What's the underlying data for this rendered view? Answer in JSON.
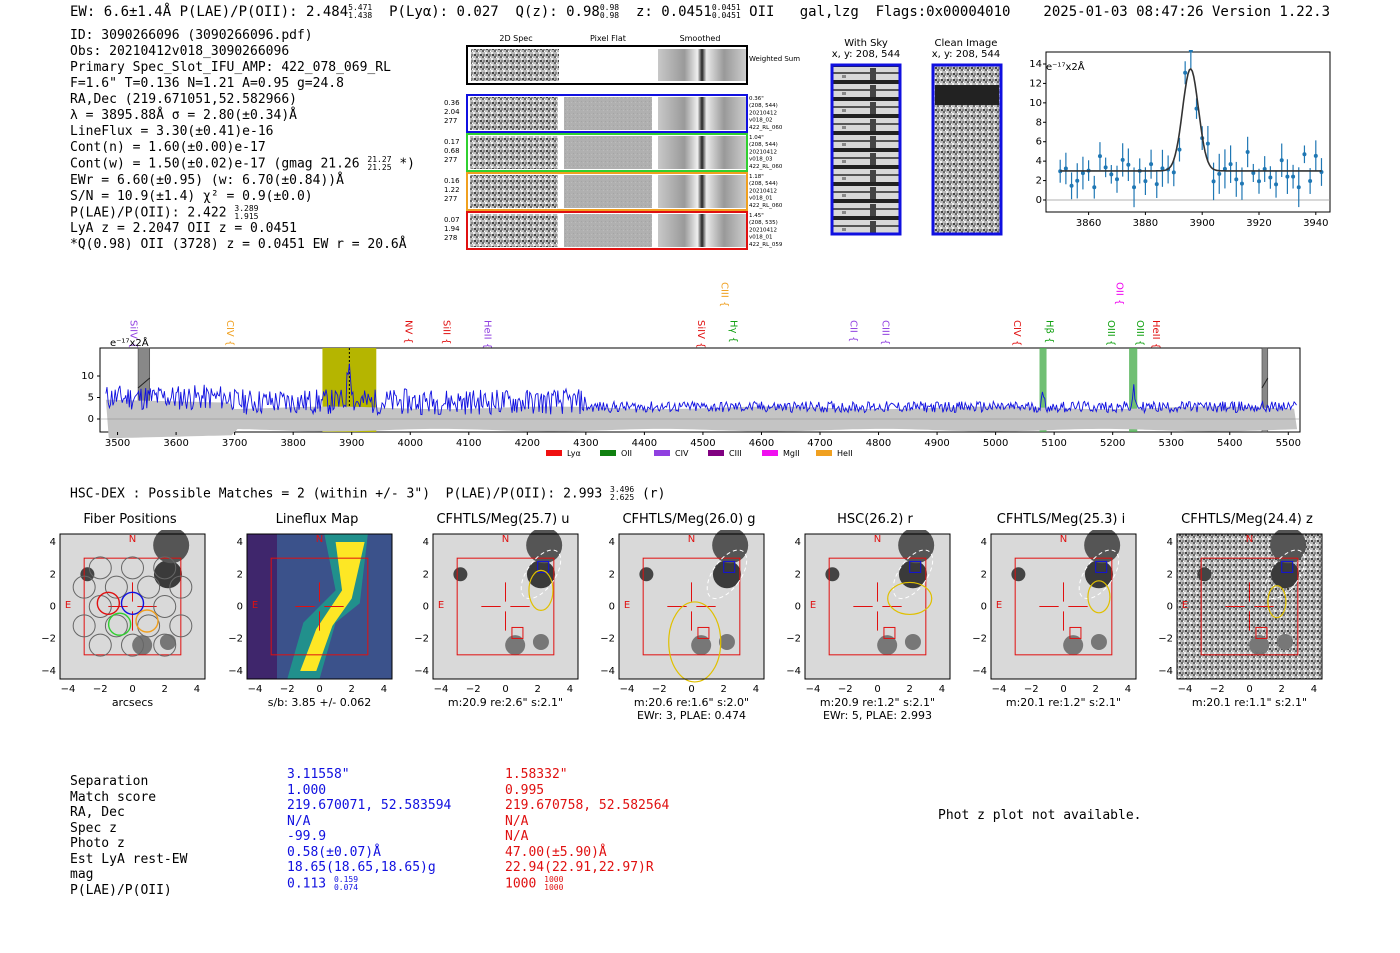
{
  "header": {
    "summary_line": "EW: 6.6±1.4Å  P(LAE)/P(OII): 2.484",
    "summary_ew_hi": "5.471",
    "summary_ew_lo": "1.438",
    "plya": "P(Lyα): 0.027",
    "qz": "Q(z): 0.98",
    "qz_hi": "0.98",
    "qz_lo": "0.98",
    "z": "z: 0.0451",
    "z_hi": "0.0451",
    "z_lo": "0.0451",
    "z_tail": "OII   gal,lzg  Flags:0x00004010",
    "timestamp": "2025-01-03 08:47:26  Version 1.22.3"
  },
  "info": {
    "lines": [
      "ID: 3090266096 (3090266096.pdf)",
      "Obs: 20210412v018_3090266096",
      "Primary Spec_Slot_IFU_AMP: 422_078_069_RL",
      "F=1.6\"  T=0.136  N=1.21  A=0.95  g=24.8",
      "RA,Dec (219.671051,52.582966)",
      "λ = 3895.88Å  σ = 2.80(±0.34)Å",
      "LineFlux = 3.30(±0.41)e-16",
      "Cont(n) = 1.60(±0.00)e-17",
      "Cont(w) = 1.50(±0.02)e-17 (gmag 21.26",
      "EWr = 6.60(±0.95) (w: 6.70(±0.84))Å",
      "S/N = 10.9(±1.4)  χ² = 0.9(±0.0)",
      "P(LAE)/P(OII): 2.422",
      "LyA z = 2.2047  OII z = 0.0451",
      "*Q(0.98) OII (3728) z = 0.0451  EW r = 20.6Å"
    ],
    "gmag_hi": "21.27",
    "gmag_lo": "21.25",
    "gmag_tail": " *)",
    "plae_hi": "3.289",
    "plae_lo": "1.915"
  },
  "cutouts": {
    "col_titles": [
      "2D Spec",
      "Pixel Flat",
      "Smoothed"
    ],
    "weighted_label": "Weighted Sum",
    "rows": [
      {
        "left": [
          "0.36",
          "2.04",
          "277"
        ],
        "right": [
          "0.36\"",
          "(208, 544)",
          "20210412",
          "v018_02",
          "422_RL_060"
        ],
        "color": "#1010e0"
      },
      {
        "left": [
          "0.17",
          "0.68",
          "277"
        ],
        "right": [
          "1.04\"",
          "(208, 544)",
          "20210412",
          "v018_03",
          "422_RL_060"
        ],
        "color": "#30d030"
      },
      {
        "left": [
          "0.16",
          "1.22",
          "277"
        ],
        "right": [
          "1.18\"",
          "(208, 544)",
          "20210412",
          "v018_01",
          "422_RL_060"
        ],
        "color": "#f0a020"
      },
      {
        "left": [
          "0.07",
          "1.94",
          "278"
        ],
        "right": [
          "1.45\"",
          "(208, 535)",
          "20210412",
          "v018_01",
          "422_RL_059"
        ],
        "color": "#e01010"
      }
    ],
    "with_sky_title": "With Sky",
    "with_sky_sub": "x, y: 208, 544",
    "clean_title": "Clean Image",
    "clean_sub": "x, y: 208, 544"
  },
  "line_fit": {
    "ylabel": "e⁻¹⁷x2Å",
    "xticks": [
      "3860",
      "3880",
      "3900",
      "3920",
      "3940"
    ],
    "yticks": [
      "0",
      "2",
      "4",
      "6",
      "8",
      "10",
      "12",
      "14"
    ]
  },
  "full_spectrum": {
    "ylabel": "e⁻¹⁷x2Å",
    "xticks": [
      "3500",
      "3600",
      "3700",
      "3800",
      "3900",
      "4000",
      "4100",
      "4200",
      "4300",
      "4400",
      "4500",
      "4600",
      "4700",
      "4800",
      "4900",
      "5000",
      "5100",
      "5200",
      "5300",
      "5400",
      "5500"
    ],
    "yticks": [
      "0",
      "5",
      "10"
    ],
    "lines": [
      {
        "name": "SiIV",
        "wave": 3515,
        "color": "#9040e0",
        "row": 0
      },
      {
        "name": "CIV",
        "wave": 3680,
        "color": "#f0a020",
        "row": 0
      },
      {
        "name": "NV",
        "wave": 3985,
        "color": "#e01010",
        "row": 0
      },
      {
        "name": "SiII",
        "wave": 4050,
        "color": "#e01010",
        "row": 0
      },
      {
        "name": "HeII",
        "wave": 4120,
        "color": "#9040e0",
        "row": 0
      },
      {
        "name": "SiIV",
        "wave": 4485,
        "color": "#e01010",
        "row": 0
      },
      {
        "name": "CIII",
        "wave": 4525,
        "color": "#f0a020",
        "row": 1
      },
      {
        "name": "Hγ",
        "wave": 4540,
        "color": "#10a010",
        "row": 0
      },
      {
        "name": "CII",
        "wave": 4745,
        "color": "#9040e0",
        "row": 0
      },
      {
        "name": "CIII",
        "wave": 4800,
        "color": "#9040e0",
        "row": 0
      },
      {
        "name": "CIV",
        "wave": 5025,
        "color": "#e01010",
        "row": 0
      },
      {
        "name": "Hβ",
        "wave": 5080,
        "color": "#10a010",
        "row": 0
      },
      {
        "name": "OIII",
        "wave": 5185,
        "color": "#10a010",
        "row": 0
      },
      {
        "name": "OII",
        "wave": 5200,
        "color": "#f000f0",
        "row": 1
      },
      {
        "name": "OIII",
        "wave": 5235,
        "color": "#10a010",
        "row": 0
      },
      {
        "name": "HeII",
        "wave": 5262,
        "color": "#e01010",
        "row": 0
      }
    ],
    "legend": [
      {
        "label": "Lyα",
        "color": "#f01010"
      },
      {
        "label": "OII",
        "color": "#108010"
      },
      {
        "label": "CIV",
        "color": "#9040e0"
      },
      {
        "label": "CIII",
        "color": "#800080"
      },
      {
        "label": "MgII",
        "color": "#f010f0"
      },
      {
        "label": "HeII",
        "color": "#f0a020"
      }
    ]
  },
  "hsc": {
    "header": "HSC-DEX : Possible Matches = 2 (within +/- 3\")  P(LAE)/P(OII): 2.993",
    "hi": "3.496",
    "lo": "2.625",
    "tail": " (r)",
    "panels": [
      {
        "title": "Fiber Positions",
        "caption1": "arcsecs",
        "caption2": ""
      },
      {
        "title": "Lineflux Map",
        "caption1": "s/b: 3.85 +/- 0.062",
        "caption2": ""
      },
      {
        "title": "CFHTLS/Meg(25.7) u",
        "caption1": "m:20.9  re:2.6\"  s:2.1\"",
        "caption2": ""
      },
      {
        "title": "CFHTLS/Meg(26.0) g",
        "caption1": "m:20.6  re:1.6\"  s:2.0\"",
        "caption2": "EWr: 3, PLAE: 0.474"
      },
      {
        "title": "HSC(26.2) r",
        "caption1": "m:20.9  re:1.2\"  s:2.1\"",
        "caption2": "EWr: 5, PLAE: 2.993"
      },
      {
        "title": "CFHTLS/Meg(25.3) i",
        "caption1": "m:20.1  re:1.2\"  s:2.1\"",
        "caption2": ""
      },
      {
        "title": "CFHTLS/Meg(24.4) z",
        "caption1": "m:20.1  re:1.1\"  s:2.1\"",
        "caption2": ""
      }
    ],
    "ticks": [
      "4",
      "2",
      "0",
      "−2",
      "−4"
    ],
    "xticks": [
      "−4",
      "−2",
      "0",
      "2",
      "4"
    ],
    "n_label": "N",
    "e_label": "E"
  },
  "match_table": {
    "labels": [
      "Separation",
      "Match score",
      "RA, Dec",
      "Spec z",
      "Photo z",
      "Est LyA rest-EW",
      "mag",
      "P(LAE)/P(OII)"
    ],
    "blue": [
      "3.11558\"",
      "1.000",
      "219.670071, 52.583594",
      "N/A",
      "-99.9",
      "0.58(±0.07)Å",
      "18.65(18.65,18.65)g",
      "0.113"
    ],
    "blue_hi": "0.159",
    "blue_lo": "0.074",
    "red": [
      "1.58332\"",
      "0.995",
      "219.670758, 52.582564",
      "N/A",
      "N/A",
      "47.00(±5.90)Å",
      "22.94(22.91,22.97)R",
      "1000"
    ],
    "red_hi": "1000",
    "red_lo": "1000",
    "phot_z_note": "Phot z plot not available."
  }
}
